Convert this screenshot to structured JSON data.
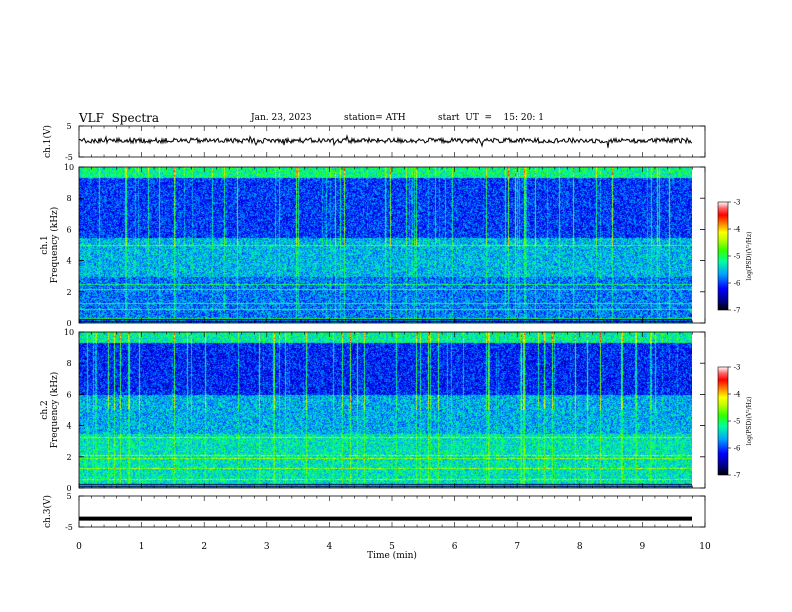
{
  "header": {
    "title": "VLF  Spectra",
    "date": "Jan. 23, 2023",
    "station": "station= ATH",
    "start": "start  UT  =    15: 20: 1"
  },
  "chart_data": [
    {
      "type": "line",
      "panel": "ch1-waveform",
      "ylabel": "ch.1(V)",
      "ylim": [
        -5,
        5
      ],
      "yticks": [
        "5",
        "-5"
      ],
      "x_range_min": [
        0,
        9.8
      ],
      "approx_level_v": 0.3
    },
    {
      "type": "heatmap",
      "panel": "ch1-spectrogram",
      "ylabel_lines": [
        "ch.1",
        "Frequency  (kHz)"
      ],
      "ylim": [
        0,
        10
      ],
      "yticks": [
        "0",
        "2",
        "4",
        "6",
        "8",
        "10"
      ],
      "x_range_min": [
        0,
        9.8
      ],
      "colorbar": {
        "label": "log(PSD)(V²/Hz)",
        "range": [
          -7,
          -3
        ],
        "ticks": [
          "-3",
          "-4",
          "-5",
          "-6",
          "-7"
        ]
      },
      "bands_khz": [
        0.3,
        0.9,
        1.3,
        2.2,
        2.5,
        5.0
      ]
    },
    {
      "type": "heatmap",
      "panel": "ch2-spectrogram",
      "ylabel_lines": [
        "ch.2",
        "Frequency  (kHz)"
      ],
      "ylim": [
        0,
        10
      ],
      "yticks": [
        "0",
        "2",
        "4",
        "6",
        "8",
        "10"
      ],
      "x_range_min": [
        0,
        9.8
      ],
      "colorbar": {
        "label": "log(PSD)(V²/Hz)",
        "range": [
          -7,
          -3
        ],
        "ticks": [
          "-3",
          "-4",
          "-5",
          "-6",
          "-7"
        ]
      },
      "bands_khz": [
        0.6,
        1.3,
        1.9,
        2.1,
        3.3
      ]
    },
    {
      "type": "line",
      "panel": "ch3-waveform",
      "ylabel": "ch.3(V)",
      "ylim": [
        -5,
        5
      ],
      "yticks": [
        "5",
        "-5"
      ],
      "x_range_min": [
        0,
        9.8
      ],
      "approx_level_v": -2.3,
      "xlabel": "Time  (min)",
      "xlim": [
        0,
        10
      ],
      "xticks": [
        "0",
        "1",
        "2",
        "3",
        "4",
        "5",
        "6",
        "7",
        "8",
        "9",
        "10"
      ]
    }
  ],
  "colors": {
    "colormap": [
      "#000000",
      "#000080",
      "#0000ff",
      "#00a0ff",
      "#00ffa0",
      "#30ff00",
      "#c0ff00",
      "#ffff00",
      "#ff8000",
      "#ff0000",
      "#ff6060",
      "#ffffff"
    ],
    "trace": "#000000"
  }
}
